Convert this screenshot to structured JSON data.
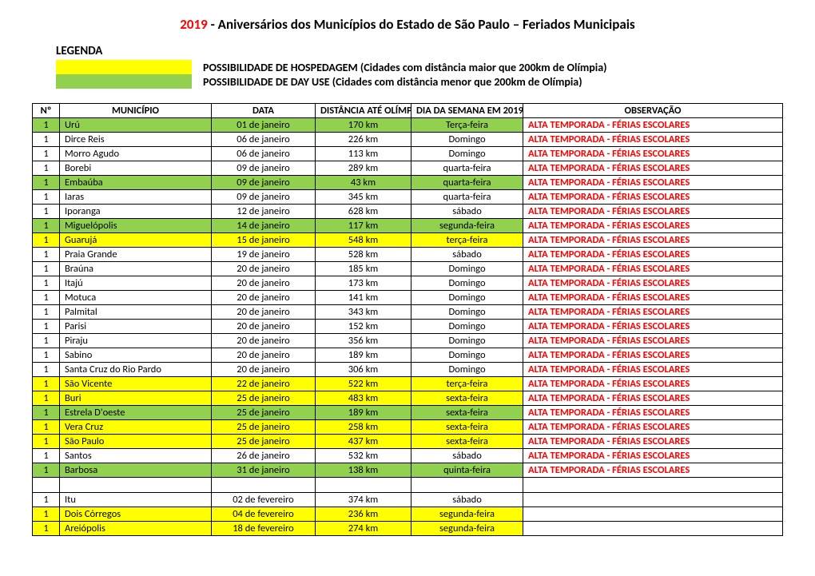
{
  "colors": {
    "yellow": "#ffff00",
    "green": "#92d050",
    "obs_red": "#ff0000"
  },
  "title": {
    "year": "2019",
    "rest": " - Aniversários dos Municípios do Estado de São Paulo – Feriados Municipais"
  },
  "legend": {
    "title": "LEGENDA",
    "items": [
      {
        "swatch": "yellow",
        "text": "POSSIBILIDADE DE HOSPEDAGEM (Cidades com distância maior que 200km de Olímpia)"
      },
      {
        "swatch": "green",
        "text": "POSSIBILIDADE DE DAY USE (Cidades com distância menor que 200km de Olímpia)"
      }
    ]
  },
  "table": {
    "headers": {
      "num": "Nº",
      "municipio": "MUNICÍPIO",
      "data": "DATA",
      "distancia": "DISTÂNCIA ATÉ OLÍMPIA",
      "dia": "DIA DA SEMANA EM 2019",
      "obs": "OBSERVAÇÃO"
    },
    "obs_text": "ALTA TEMPORADA - FÉRIAS ESCOLARES",
    "rows": [
      {
        "n": "1",
        "mun": "Urú",
        "data": "01 de janeiro",
        "dist": "170 km",
        "dia": "Terça-feira",
        "hl": "green",
        "obs": true
      },
      {
        "n": "1",
        "mun": "Dirce Reis",
        "data": "06 de janeiro",
        "dist": "226 km",
        "dia": "Domingo",
        "hl": null,
        "obs": true
      },
      {
        "n": "1",
        "mun": "Morro Agudo",
        "data": "06 de janeiro",
        "dist": "113 km",
        "dia": "Domingo",
        "hl": null,
        "obs": true
      },
      {
        "n": "1",
        "mun": "Borebi",
        "data": "09 de janeiro",
        "dist": "289 km",
        "dia": "quarta-feira",
        "hl": null,
        "obs": true
      },
      {
        "n": "1",
        "mun": "Embaúba",
        "data": "09 de janeiro",
        "dist": "43 km",
        "dia": "quarta-feira",
        "hl": "green",
        "obs": true
      },
      {
        "n": "1",
        "mun": "Iaras",
        "data": "09 de janeiro",
        "dist": "345 km",
        "dia": "quarta-feira",
        "hl": null,
        "obs": true
      },
      {
        "n": "1",
        "mun": "Iporanga",
        "data": "12 de janeiro",
        "dist": "628 km",
        "dia": "sábado",
        "hl": null,
        "obs": true
      },
      {
        "n": "1",
        "mun": "Miguelópolis",
        "data": "14 de janeiro",
        "dist": "117 km",
        "dia": "segunda-feira",
        "hl": "green",
        "obs": true
      },
      {
        "n": "1",
        "mun": "Guarujá",
        "data": "15 de janeiro",
        "dist": "548 km",
        "dia": "terça-feira",
        "hl": "yellow",
        "obs": true
      },
      {
        "n": "1",
        "mun": "Praia Grande",
        "data": "19 de janeiro",
        "dist": "528 km",
        "dia": "sábado",
        "hl": null,
        "obs": true
      },
      {
        "n": "1",
        "mun": "Braúna",
        "data": "20 de janeiro",
        "dist": "185 km",
        "dia": "Domingo",
        "hl": null,
        "obs": true
      },
      {
        "n": "1",
        "mun": "Itajú",
        "data": "20 de janeiro",
        "dist": "173 km",
        "dia": "Domingo",
        "hl": null,
        "obs": true
      },
      {
        "n": "1",
        "mun": "Motuca",
        "data": "20 de janeiro",
        "dist": "141 km",
        "dia": "Domingo",
        "hl": null,
        "obs": true
      },
      {
        "n": "1",
        "mun": "Palmital",
        "data": "20 de janeiro",
        "dist": "343 km",
        "dia": "Domingo",
        "hl": null,
        "obs": true
      },
      {
        "n": "1",
        "mun": "Parisi",
        "data": "20 de janeiro",
        "dist": "152 km",
        "dia": "Domingo",
        "hl": null,
        "obs": true
      },
      {
        "n": "1",
        "mun": "Piraju",
        "data": "20 de janeiro",
        "dist": "356 km",
        "dia": "Domingo",
        "hl": null,
        "obs": true
      },
      {
        "n": "1",
        "mun": "Sabino",
        "data": "20 de janeiro",
        "dist": "189 km",
        "dia": "Domingo",
        "hl": null,
        "obs": true
      },
      {
        "n": "1",
        "mun": "Santa Cruz do Rio Pardo",
        "data": "20 de janeiro",
        "dist": "306 km",
        "dia": "Domingo",
        "hl": null,
        "obs": true
      },
      {
        "n": "1",
        "mun": "São Vicente",
        "data": "22 de janeiro",
        "dist": "522 km",
        "dia": "terça-feira",
        "hl": "yellow",
        "obs": true
      },
      {
        "n": "1",
        "mun": "Buri",
        "data": "25 de janeiro",
        "dist": "483 km",
        "dia": "sexta-feira",
        "hl": "yellow",
        "obs": true
      },
      {
        "n": "1",
        "mun": "Estrela D'oeste",
        "data": "25 de janeiro",
        "dist": "189 km",
        "dia": "sexta-feira",
        "hl": "green",
        "obs": true
      },
      {
        "n": "1",
        "mun": "Vera Cruz",
        "data": "25 de janeiro",
        "dist": "258 km",
        "dia": "sexta-feira",
        "hl": "yellow",
        "obs": true
      },
      {
        "n": "1",
        "mun": "São Paulo",
        "data": "25 de janeiro",
        "dist": "437 km",
        "dia": "sexta-feira",
        "hl": "yellow",
        "obs": true
      },
      {
        "n": "1",
        "mun": "Santos",
        "data": "26 de janeiro",
        "dist": "532 km",
        "dia": "sábado",
        "hl": null,
        "obs": true
      },
      {
        "n": "1",
        "mun": "Barbosa",
        "data": "31 de janeiro",
        "dist": "138 km",
        "dia": "quinta-feira",
        "hl": "green",
        "obs": true
      },
      {
        "blank": true
      },
      {
        "n": "1",
        "mun": "Itu",
        "data": "02 de fevereiro",
        "dist": "374 km",
        "dia": "sábado",
        "hl": null,
        "obs": false
      },
      {
        "n": "1",
        "mun": "Dois Córregos",
        "data": "04 de fevereiro",
        "dist": "236 km",
        "dia": "segunda-feira",
        "hl": "yellow",
        "obs": false
      },
      {
        "n": "1",
        "mun": "Areiópolis",
        "data": "18 de fevereiro",
        "dist": "274 km",
        "dia": "segunda-feira",
        "hl": "yellow",
        "obs": false
      }
    ]
  }
}
